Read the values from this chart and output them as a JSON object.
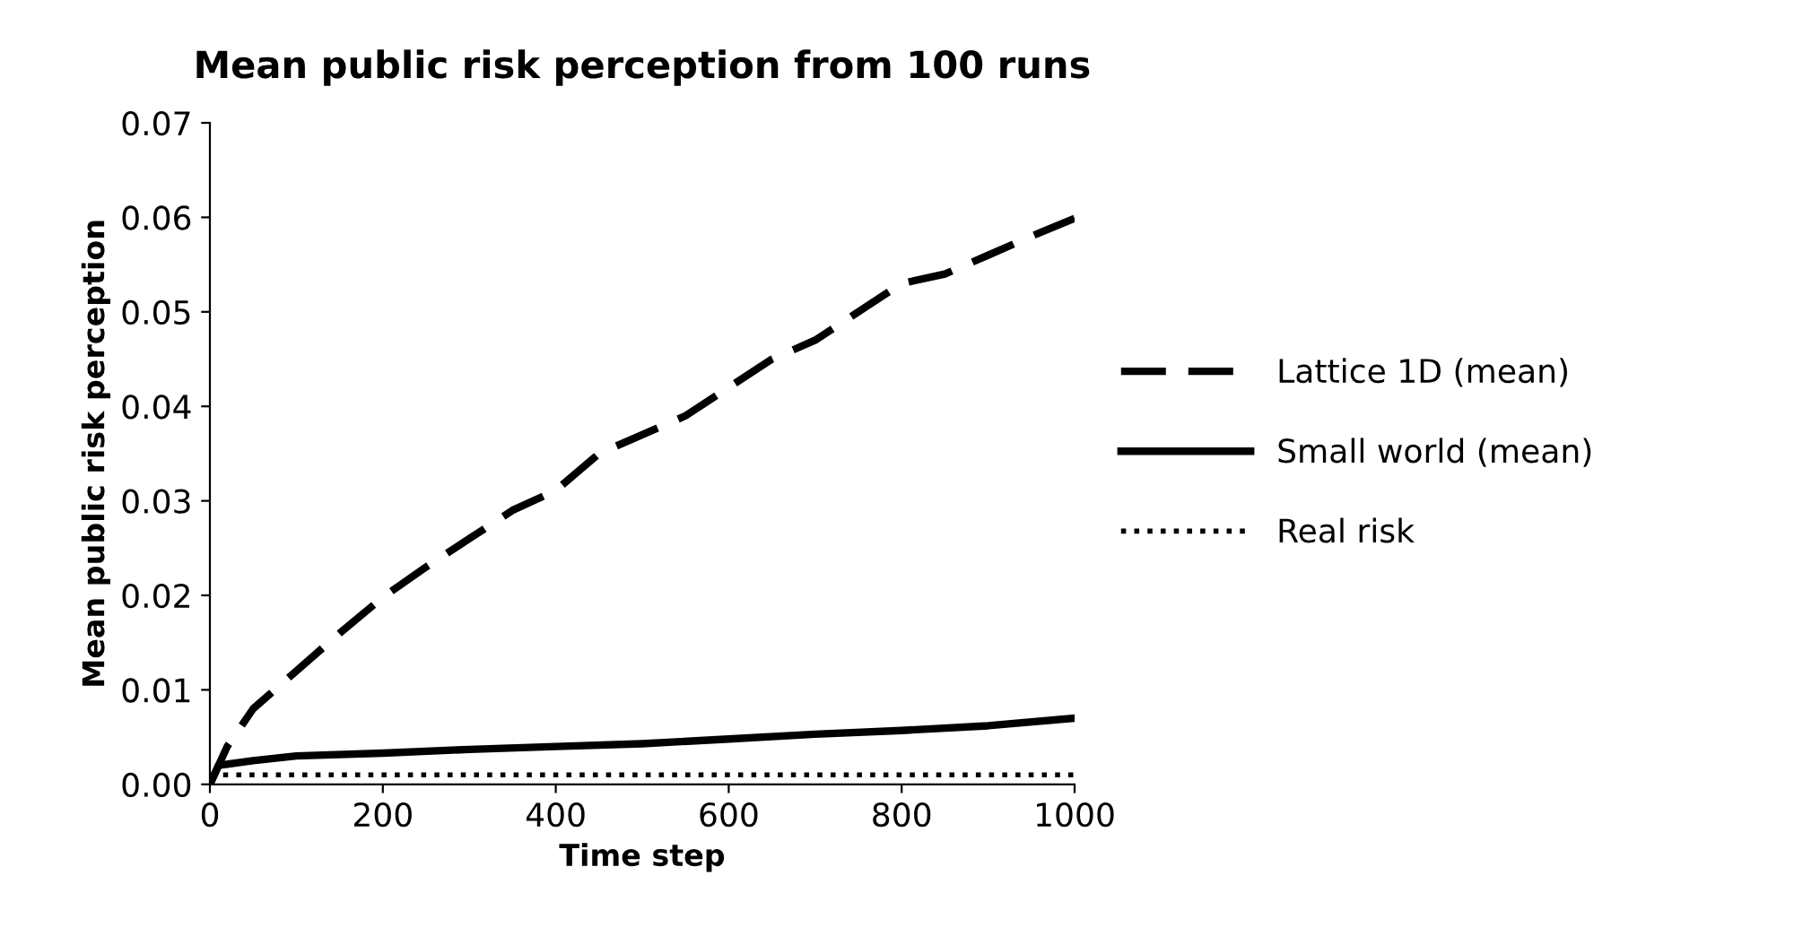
{
  "chart_data": {
    "type": "line",
    "title": "Mean public risk perception from 100 runs",
    "xlabel": "Time step",
    "ylabel": "Mean public risk perception",
    "xlim": [
      0,
      1000
    ],
    "xticks": [
      0,
      200,
      400,
      600,
      800,
      1000
    ],
    "ylim": [
      0,
      0.07
    ],
    "yticks": [
      {
        "value": 0,
        "label": "0.00"
      },
      {
        "value": 0.01,
        "label": "0.01"
      },
      {
        "value": 0.02,
        "label": "0.02"
      },
      {
        "value": 0.03,
        "label": "0.03"
      },
      {
        "value": 0.04,
        "label": "0.04"
      },
      {
        "value": 0.05,
        "label": "0.05"
      },
      {
        "value": 0.06,
        "label": "0.06"
      },
      {
        "value": 0.07,
        "label": "0.07"
      }
    ],
    "grid": false,
    "legend": "right",
    "marker": "none",
    "series": [
      {
        "name": "Lattice 1D (mean)",
        "color": "#000000",
        "line_style": "dashed",
        "x": [
          0,
          20,
          50,
          100,
          150,
          200,
          250,
          300,
          350,
          400,
          450,
          500,
          550,
          600,
          650,
          700,
          750,
          800,
          850,
          900,
          950,
          1000
        ],
        "values": [
          0,
          0.004,
          0.008,
          0.012,
          0.016,
          0.0198,
          0.023,
          0.026,
          0.029,
          0.0311,
          0.035,
          0.037,
          0.039,
          0.042,
          0.045,
          0.047,
          0.05,
          0.053,
          0.054,
          0.056,
          0.058,
          0.0599
        ]
      },
      {
        "name": "Small world (mean)",
        "color": "#000000",
        "line_style": "solid",
        "x": [
          0,
          10,
          50,
          100,
          200,
          300,
          400,
          500,
          600,
          700,
          800,
          900,
          1000
        ],
        "values": [
          0,
          0.002,
          0.0025,
          0.003,
          0.0033,
          0.0037,
          0.004,
          0.0043,
          0.0048,
          0.0053,
          0.0057,
          0.0062,
          0.007
        ]
      },
      {
        "name": "Real risk",
        "color": "#000000",
        "line_style": "dotted",
        "x": [
          0,
          200,
          400,
          600,
          800,
          1000
        ],
        "values": [
          0.001,
          0.001,
          0.001,
          0.001,
          0.001,
          0.001
        ]
      }
    ]
  }
}
